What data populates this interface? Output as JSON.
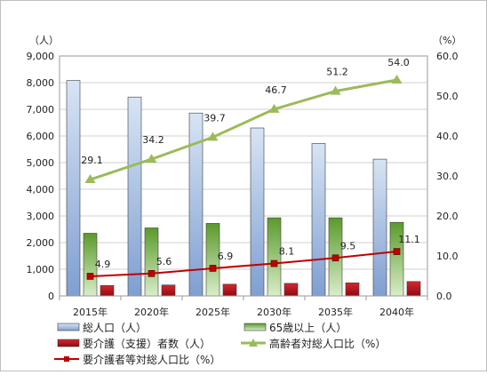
{
  "chart_data": {
    "type": "bar",
    "categories": [
      "2015年",
      "2020年",
      "2025年",
      "2030年",
      "2035年",
      "2040年"
    ],
    "left_axis": {
      "unit_label": "（人）",
      "ylim": [
        0,
        9000
      ],
      "ticks": [
        "0",
        "1,000",
        "2,000",
        "3,000",
        "4,000",
        "5,000",
        "6,000",
        "7,000",
        "8,000",
        "9,000"
      ]
    },
    "right_axis": {
      "unit_label": "（%）",
      "ylim": [
        0,
        60
      ],
      "ticks": [
        "0.0",
        "10.0",
        "20.0",
        "30.0",
        "40.0",
        "50.0",
        "60.0"
      ]
    },
    "grid": true,
    "legend_position": "bottom",
    "series": [
      {
        "name": "総人口（人）",
        "kind": "bar",
        "axis": "left",
        "color": "#4f81bd",
        "values": [
          8080,
          7460,
          6860,
          6300,
          5720,
          5130
        ]
      },
      {
        "name": "65歳以上（人）",
        "kind": "bar",
        "axis": "left",
        "color": "#6aa84f",
        "values": [
          2350,
          2550,
          2720,
          2930,
          2930,
          2760
        ]
      },
      {
        "name": "要介護（支援）者数（人）",
        "kind": "bar",
        "axis": "left",
        "color": "#c0262c",
        "values": [
          390,
          410,
          440,
          470,
          490,
          540
        ]
      },
      {
        "name": "高齢者対総人口比（%）",
        "kind": "line",
        "axis": "right",
        "color": "#9bbb59",
        "marker": "triangle",
        "values": [
          29.1,
          34.2,
          39.7,
          46.7,
          51.2,
          54.0
        ],
        "labels": [
          "29.1",
          "34.2",
          "39.7",
          "46.7",
          "51.2",
          "54.0"
        ]
      },
      {
        "name": "要介護者等対総人口比（%）",
        "kind": "line",
        "axis": "right",
        "color": "#c00000",
        "marker": "square",
        "values": [
          4.9,
          5.6,
          6.9,
          8.1,
          9.5,
          11.1
        ],
        "labels": [
          "4.9",
          "5.6",
          "6.9",
          "8.1",
          "9.5",
          "11.1"
        ]
      }
    ]
  }
}
